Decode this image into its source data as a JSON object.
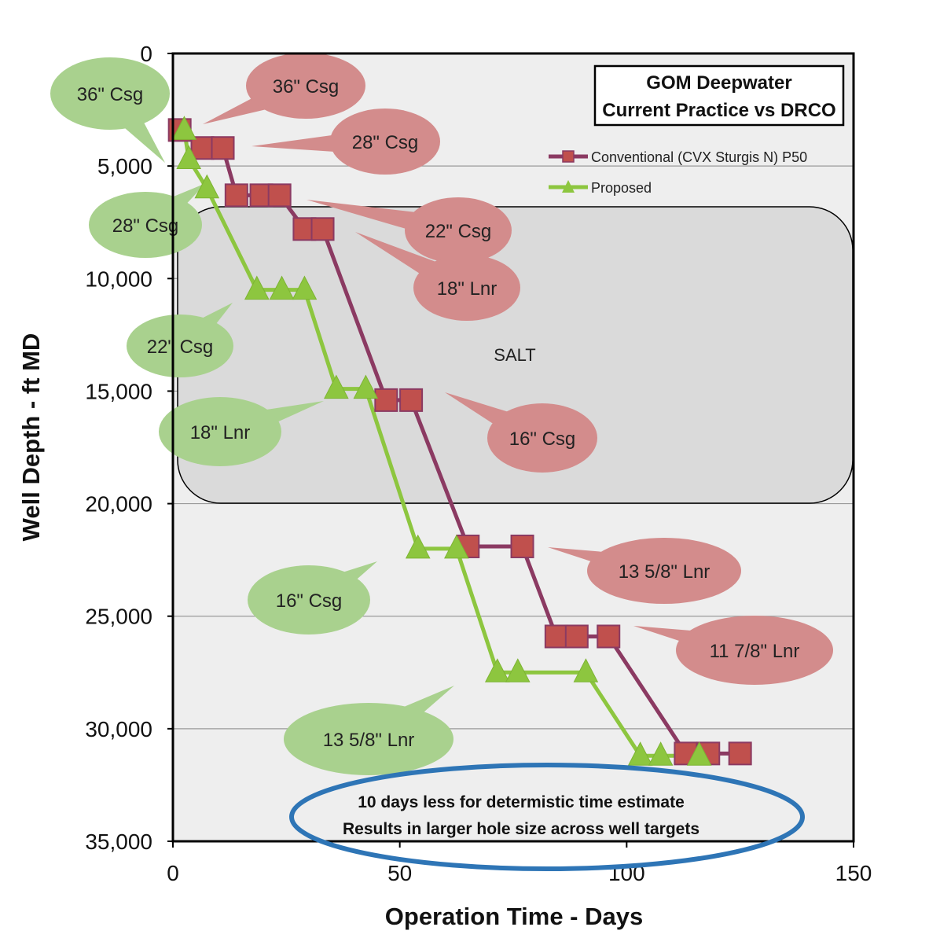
{
  "chart_data": {
    "type": "line",
    "title_lines": [
      "GOM Deepwater",
      "Current Practice vs DRCO"
    ],
    "xlabel": "Operation Time - Days",
    "ylabel": "Well Depth - ft MD",
    "xlim": [
      0,
      150
    ],
    "ylim": [
      0,
      35000
    ],
    "y_inverted": true,
    "x_ticks": [
      "0",
      "50",
      "100",
      "150"
    ],
    "x_tick_values": [
      0,
      50,
      100,
      150
    ],
    "y_ticks": [
      "0",
      "5,000",
      "10,000",
      "15,000",
      "20,000",
      "25,000",
      "30,000",
      "35,000"
    ],
    "y_tick_values": [
      0,
      5000,
      10000,
      15000,
      20000,
      25000,
      30000,
      35000
    ],
    "grid": "horizontal",
    "legend_position": "top-right",
    "series": [
      {
        "name": "Conventional (CVX Sturgis N) P50",
        "color": "#8B3A62",
        "marker": "square",
        "marker_color": "#C0504D",
        "x": [
          1.5,
          6.5,
          11,
          14,
          19.5,
          23.5,
          29,
          33,
          47,
          52.5,
          65,
          77,
          84.5,
          89,
          96,
          113,
          118,
          125
        ],
        "y": [
          3400,
          4200,
          4200,
          6300,
          6300,
          6300,
          7800,
          7800,
          15400,
          15400,
          21900,
          21900,
          25900,
          25900,
          25900,
          31100,
          31100,
          31100
        ]
      },
      {
        "name": "Proposed",
        "color": "#8DC63F",
        "marker": "triangle",
        "marker_color": "#8DC63F",
        "x": [
          2.5,
          3.5,
          7.5,
          18.5,
          24,
          29,
          36,
          42.5,
          54,
          62.5,
          71.5,
          76,
          91,
          103,
          107.5,
          116
        ],
        "y": [
          3400,
          4700,
          6000,
          10500,
          10500,
          10500,
          14900,
          14900,
          22000,
          22000,
          27500,
          27500,
          27500,
          31200,
          31200,
          31200
        ]
      }
    ],
    "region": {
      "label": "SALT",
      "x_range": [
        0,
        150
      ],
      "y_range": [
        7000,
        20000
      ]
    },
    "annotations": {
      "conventional": [
        "36\" Csg",
        "28\" Csg",
        "22\" Csg",
        "18\" Lnr",
        "16\" Csg",
        "13 5/8\" Lnr",
        "11 7/8\" Lnr"
      ],
      "proposed": [
        "36\" Csg",
        "28\" Csg",
        "22\" Csg",
        "18\" Lnr",
        "16\" Csg",
        "13 5/8\" Lnr"
      ]
    },
    "note_lines": [
      "10 days less for determistic time estimate",
      "Results in larger hole size across well targets"
    ],
    "colors": {
      "conventional_callout": "#D38C8C",
      "proposed_callout": "#A9D18E",
      "note_ellipse": "#2E75B6",
      "plot_bg": "#EEEEEE",
      "salt_fill": "#DADADA"
    }
  }
}
